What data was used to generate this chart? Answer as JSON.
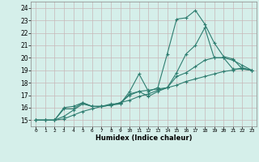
{
  "xlabel": "Humidex (Indice chaleur)",
  "xlim": [
    -0.5,
    23.5
  ],
  "ylim": [
    14.5,
    24.5
  ],
  "yticks": [
    15,
    16,
    17,
    18,
    19,
    20,
    21,
    22,
    23,
    24
  ],
  "xticks": [
    0,
    1,
    2,
    3,
    4,
    5,
    6,
    7,
    8,
    9,
    10,
    11,
    12,
    13,
    14,
    15,
    16,
    17,
    18,
    19,
    20,
    21,
    22,
    23
  ],
  "bg_color": "#d5efea",
  "grid_color": "#c8b8b8",
  "line_color": "#2e7d70",
  "lines": [
    {
      "x": [
        0,
        1,
        2,
        3,
        4,
        5,
        6,
        7,
        8,
        9,
        10,
        11,
        12,
        13,
        14,
        15,
        16,
        17,
        18,
        19,
        20,
        21,
        22,
        23
      ],
      "y": [
        15.0,
        15.0,
        15.0,
        15.1,
        15.4,
        15.7,
        15.9,
        16.1,
        16.2,
        16.4,
        16.6,
        16.9,
        17.1,
        17.4,
        17.6,
        17.8,
        18.1,
        18.3,
        18.5,
        18.7,
        18.9,
        19.0,
        19.2,
        19.0
      ]
    },
    {
      "x": [
        0,
        1,
        2,
        3,
        4,
        5,
        6,
        7,
        8,
        9,
        10,
        11,
        12,
        13,
        14,
        15,
        16,
        17,
        18,
        19,
        20,
        21,
        22,
        23
      ],
      "y": [
        15.0,
        15.0,
        15.0,
        15.3,
        15.8,
        16.3,
        16.1,
        16.1,
        16.2,
        16.4,
        17.0,
        17.3,
        17.4,
        17.5,
        17.6,
        18.5,
        18.8,
        19.3,
        19.8,
        20.0,
        20.0,
        19.8,
        19.4,
        19.0
      ]
    },
    {
      "x": [
        0,
        1,
        2,
        3,
        4,
        5,
        6,
        7,
        8,
        9,
        10,
        11,
        12,
        13,
        14,
        15,
        16,
        17,
        18,
        19,
        20,
        21,
        22,
        23
      ],
      "y": [
        15.0,
        15.0,
        15.0,
        16.0,
        16.1,
        16.4,
        16.1,
        16.1,
        16.2,
        16.3,
        17.1,
        17.3,
        16.9,
        17.3,
        17.6,
        18.8,
        20.3,
        21.0,
        22.4,
        20.0,
        20.0,
        19.1,
        19.1,
        19.0
      ]
    },
    {
      "x": [
        0,
        1,
        2,
        3,
        4,
        5,
        6,
        7,
        8,
        9,
        10,
        11,
        12,
        13,
        14,
        15,
        16,
        17,
        18,
        19,
        20,
        21,
        22,
        23
      ],
      "y": [
        15.0,
        15.0,
        15.0,
        15.9,
        15.9,
        16.4,
        16.1,
        16.1,
        16.3,
        16.3,
        17.3,
        18.7,
        17.3,
        17.6,
        20.3,
        23.1,
        23.2,
        23.8,
        22.7,
        21.2,
        20.1,
        19.9,
        19.1,
        19.0
      ]
    }
  ]
}
